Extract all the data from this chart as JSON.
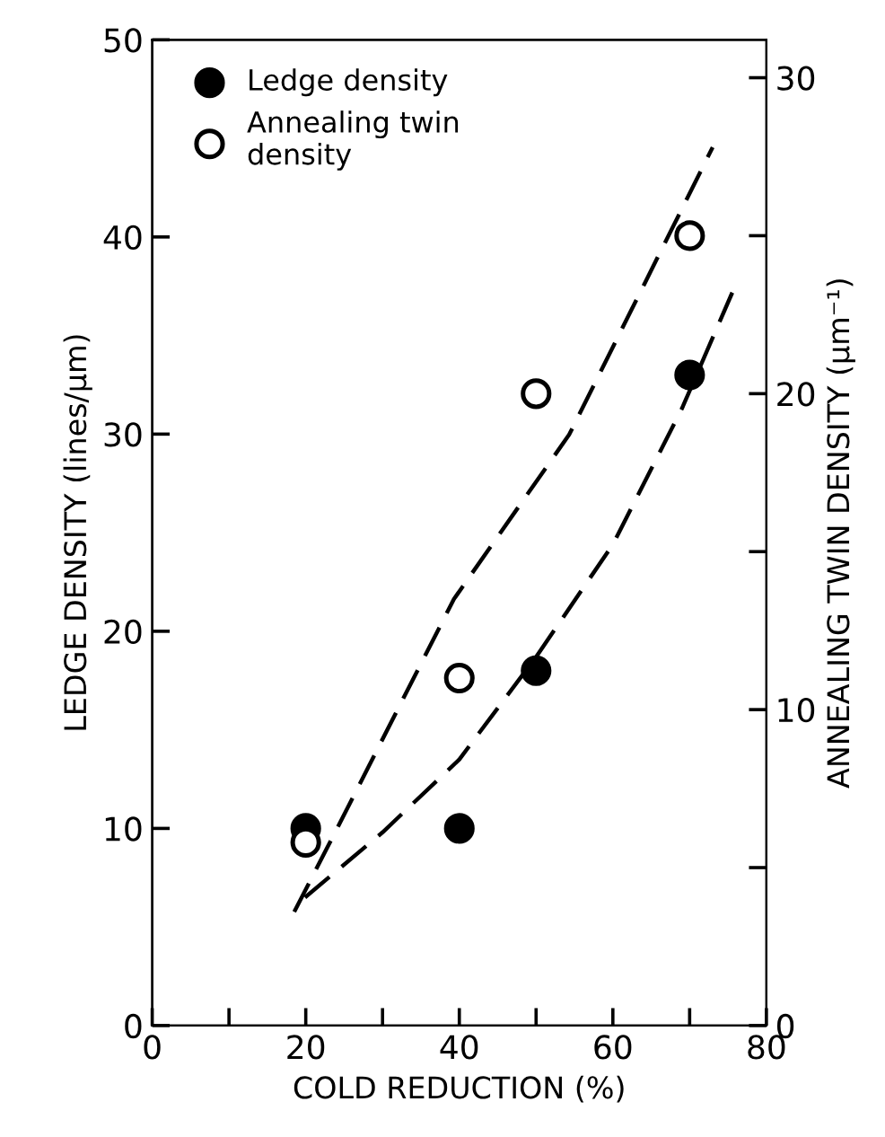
{
  "chart_data": {
    "type": "scatter",
    "xlabel": "COLD REDUCTION (%)",
    "ylabel": "LEDGE DENSITY (lines/μm)",
    "y2label": "ANNEALING TWIN DENSITY (μm⁻¹)",
    "xlim": [
      0,
      80
    ],
    "xticks": [
      0,
      {
        "value": 10,
        "label": null
      },
      20,
      {
        "value": 30,
        "label": null
      },
      40,
      {
        "value": 50,
        "label": null
      },
      60,
      {
        "value": 70,
        "label": null
      },
      80
    ],
    "ylim": [
      0,
      50
    ],
    "yticks": [
      0,
      10,
      20,
      30,
      40,
      50
    ],
    "y2lim": [
      0,
      31.2
    ],
    "y2ticks": [
      0,
      {
        "value": 5,
        "label": null
      },
      10,
      {
        "value": 15,
        "label": null
      },
      20,
      {
        "value": 25,
        "label": null
      },
      30
    ],
    "grid": false,
    "legend": "top left",
    "series": [
      {
        "name": "Ledge density",
        "marker": "circle",
        "color": "#000000",
        "x": [
          20,
          40,
          50,
          70
        ],
        "values": [
          10,
          10,
          18,
          33
        ]
      },
      {
        "name": "Annealing twin\ndensity",
        "marker": "circle",
        "color": "#ffffff",
        "axis": "y2",
        "x": [
          20,
          40,
          50,
          70
        ],
        "values": [
          5.8,
          11.0,
          20.0,
          25.0
        ]
      },
      {
        "type": "line",
        "color": "#000000",
        "line_style": "dashed",
        "x": [
          19.9,
          30,
          40,
          50,
          60,
          69,
          75.8
        ],
        "values": [
          6.5,
          9.8,
          13.5,
          18.7,
          24.4,
          31.3,
          37.4
        ]
      },
      {
        "type": "line",
        "color": "#000000",
        "line_style": "dashed",
        "axis": "y2",
        "x": [
          18.5,
          24.1,
          39.3,
          54.3,
          73
        ],
        "values": [
          3.6,
          6.25,
          13.5,
          18.7,
          27.8
        ]
      }
    ]
  }
}
